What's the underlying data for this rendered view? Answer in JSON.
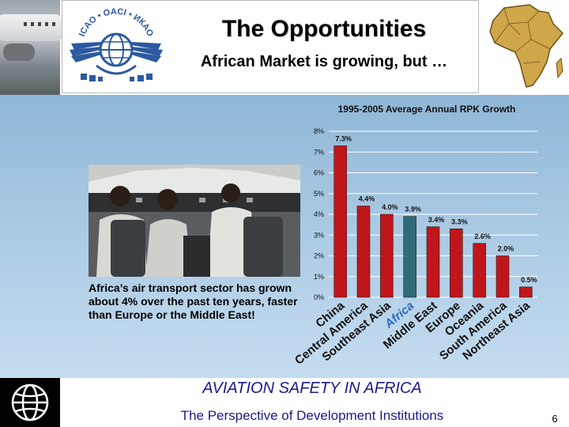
{
  "header": {
    "title": "The Opportunities",
    "subtitle": "African Market is growing, but …",
    "logo_text_top": "ICAO • OACI • ИКАО"
  },
  "caption": "Africa’s air transport sector has grown about 4% over the past ten years, faster than Europe or the Middle East!",
  "footer": {
    "line1": "AVIATION SAFETY IN AFRICA",
    "line2": "The Perspective of Development Institutions",
    "page_number": "6"
  },
  "colors": {
    "bar": "#c0161b",
    "highlight_bar": "#2f6c77",
    "highlight_label": "#2b6cbf",
    "footer_text": "#1a1a8c",
    "background_top": "#8fb6d6",
    "background_bottom": "#c5dcef"
  },
  "chart_data": {
    "type": "bar",
    "title": "1995-2005 Average Annual RPK Growth",
    "categories": [
      "China",
      "Central America",
      "Southeast Asia",
      "Africa",
      "Middle East",
      "Europe",
      "Oceania",
      "South America",
      "Northeast Asia"
    ],
    "values": [
      7.3,
      4.4,
      4.0,
      3.9,
      3.4,
      3.3,
      2.6,
      2.0,
      0.5
    ],
    "data_labels": [
      "7.3%",
      "4.4%",
      "4.0%",
      "3.9%",
      "3.4%",
      "3.3%",
      "2.6%",
      "2.0%",
      "0.5%"
    ],
    "highlight_category": "Africa",
    "ylim": [
      0,
      8
    ],
    "yticks": [
      "0%",
      "1%",
      "2%",
      "3%",
      "4%",
      "5%",
      "6%",
      "7%",
      "8%"
    ],
    "grid": true,
    "legend": "none"
  }
}
